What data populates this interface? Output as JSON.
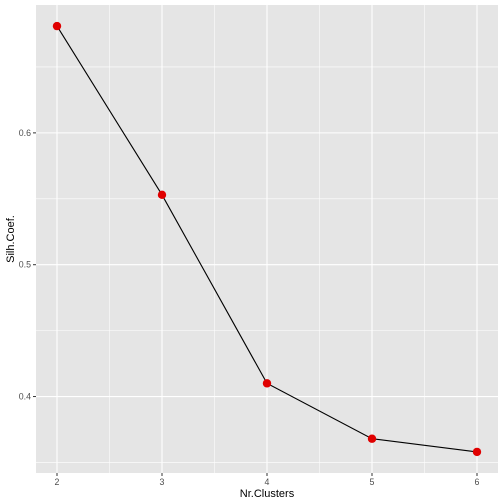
{
  "chart_data": {
    "type": "line",
    "title": "",
    "xlabel": "Nr.Clusters",
    "ylabel": "Silh.Coef.",
    "x": [
      2,
      3,
      4,
      5,
      6
    ],
    "series": [
      {
        "values": [
          0.681,
          0.553,
          0.41,
          0.368,
          0.358
        ]
      }
    ],
    "xlim": [
      1.8,
      6.2
    ],
    "ylim": [
      0.342,
      0.697
    ],
    "x_ticks": [
      2,
      3,
      4,
      5,
      6
    ],
    "y_ticks": [
      0.4,
      0.5,
      0.6
    ],
    "y_tick_labels": [
      "0.4",
      "0.5",
      "0.6"
    ],
    "grid": true,
    "legend": "none",
    "colors": {
      "panel": "#e5e5e5",
      "grid": "#ffffff",
      "line": "#000000",
      "point": "#e00000",
      "tick": "#4d4d4d"
    }
  }
}
